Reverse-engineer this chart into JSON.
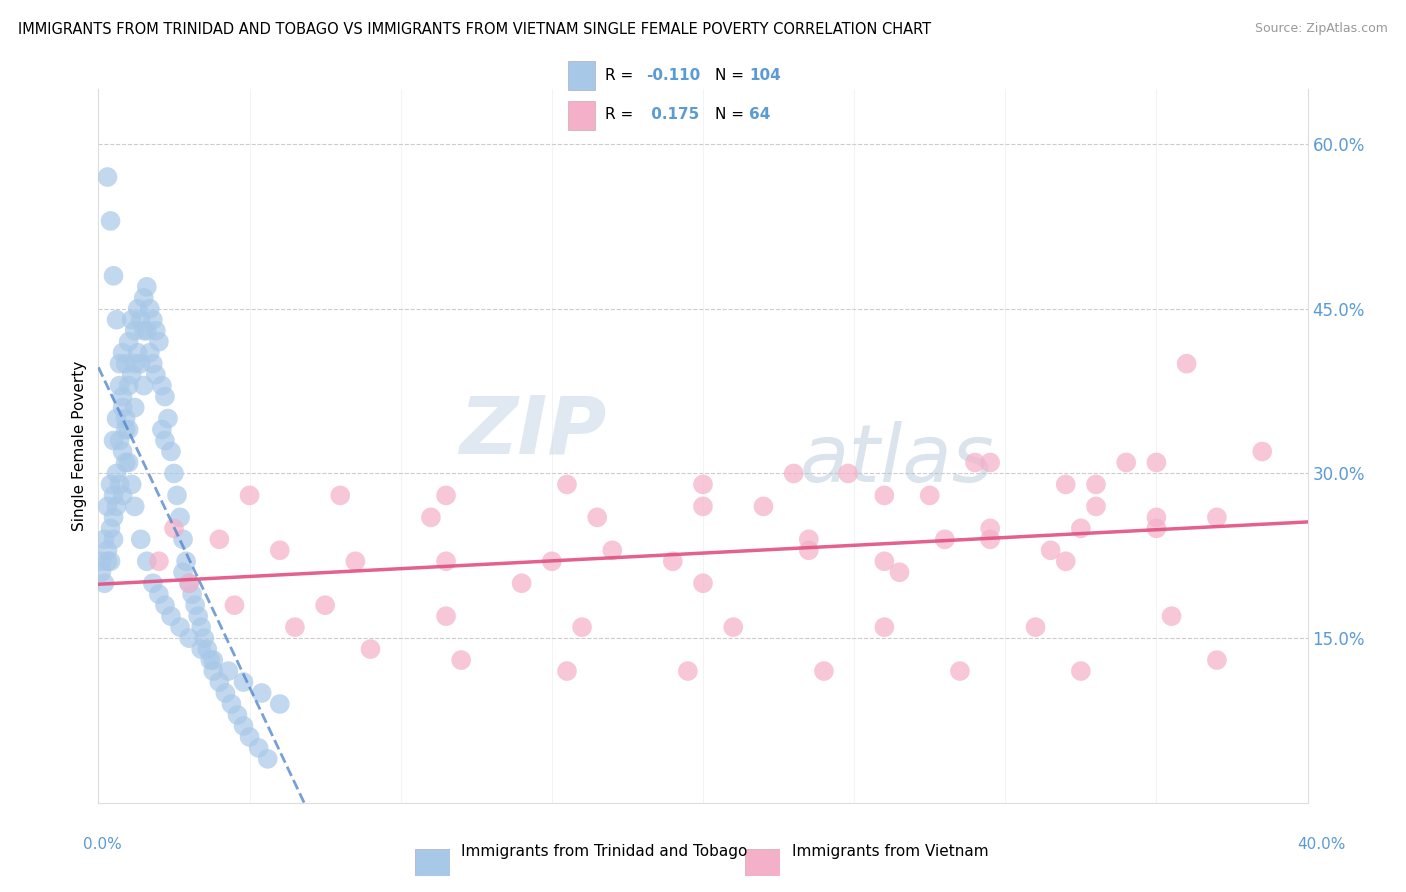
{
  "title": "IMMIGRANTS FROM TRINIDAD AND TOBAGO VS IMMIGRANTS FROM VIETNAM SINGLE FEMALE POVERTY CORRELATION CHART",
  "source": "Source: ZipAtlas.com",
  "ylabel": "Single Female Poverty",
  "legend1_label": "Immigrants from Trinidad and Tobago",
  "legend2_label": "Immigrants from Vietnam",
  "R1": -0.11,
  "N1": 104,
  "R2": 0.175,
  "N2": 64,
  "color1": "#a8c8e8",
  "color2": "#f4b0c8",
  "line1_color": "#5588cc",
  "line2_color": "#e05080",
  "watermark_zip": "ZIP",
  "watermark_atlas": "atlas",
  "xlim": [
    0.0,
    0.4
  ],
  "ylim": [
    0.0,
    0.65
  ],
  "tt_x": [
    0.001,
    0.001,
    0.002,
    0.002,
    0.003,
    0.003,
    0.003,
    0.004,
    0.004,
    0.004,
    0.005,
    0.005,
    0.005,
    0.005,
    0.006,
    0.006,
    0.006,
    0.007,
    0.007,
    0.007,
    0.008,
    0.008,
    0.008,
    0.008,
    0.009,
    0.009,
    0.009,
    0.01,
    0.01,
    0.01,
    0.011,
    0.011,
    0.012,
    0.012,
    0.012,
    0.013,
    0.013,
    0.014,
    0.014,
    0.015,
    0.015,
    0.015,
    0.016,
    0.016,
    0.017,
    0.017,
    0.018,
    0.018,
    0.019,
    0.019,
    0.02,
    0.021,
    0.021,
    0.022,
    0.022,
    0.023,
    0.024,
    0.025,
    0.026,
    0.027,
    0.028,
    0.028,
    0.029,
    0.03,
    0.031,
    0.032,
    0.033,
    0.034,
    0.035,
    0.036,
    0.037,
    0.038,
    0.04,
    0.042,
    0.044,
    0.046,
    0.048,
    0.05,
    0.053,
    0.056,
    0.003,
    0.004,
    0.005,
    0.006,
    0.007,
    0.008,
    0.009,
    0.01,
    0.011,
    0.012,
    0.014,
    0.016,
    0.018,
    0.02,
    0.022,
    0.024,
    0.027,
    0.03,
    0.034,
    0.038,
    0.043,
    0.048,
    0.054,
    0.06
  ],
  "tt_y": [
    0.22,
    0.21,
    0.24,
    0.2,
    0.27,
    0.23,
    0.22,
    0.29,
    0.25,
    0.22,
    0.33,
    0.28,
    0.26,
    0.24,
    0.35,
    0.3,
    0.27,
    0.38,
    0.33,
    0.29,
    0.41,
    0.36,
    0.32,
    0.28,
    0.4,
    0.35,
    0.31,
    0.42,
    0.38,
    0.34,
    0.44,
    0.39,
    0.43,
    0.4,
    0.36,
    0.45,
    0.41,
    0.44,
    0.4,
    0.46,
    0.43,
    0.38,
    0.47,
    0.43,
    0.45,
    0.41,
    0.44,
    0.4,
    0.43,
    0.39,
    0.42,
    0.38,
    0.34,
    0.37,
    0.33,
    0.35,
    0.32,
    0.3,
    0.28,
    0.26,
    0.24,
    0.21,
    0.22,
    0.2,
    0.19,
    0.18,
    0.17,
    0.16,
    0.15,
    0.14,
    0.13,
    0.12,
    0.11,
    0.1,
    0.09,
    0.08,
    0.07,
    0.06,
    0.05,
    0.04,
    0.57,
    0.53,
    0.48,
    0.44,
    0.4,
    0.37,
    0.34,
    0.31,
    0.29,
    0.27,
    0.24,
    0.22,
    0.2,
    0.19,
    0.18,
    0.17,
    0.16,
    0.15,
    0.14,
    0.13,
    0.12,
    0.11,
    0.1,
    0.09
  ],
  "vn_x": [
    0.02,
    0.03,
    0.045,
    0.065,
    0.09,
    0.12,
    0.155,
    0.195,
    0.24,
    0.285,
    0.325,
    0.37,
    0.025,
    0.04,
    0.06,
    0.085,
    0.115,
    0.15,
    0.19,
    0.235,
    0.28,
    0.325,
    0.37,
    0.05,
    0.08,
    0.115,
    0.155,
    0.2,
    0.248,
    0.295,
    0.34,
    0.385,
    0.075,
    0.115,
    0.16,
    0.21,
    0.26,
    0.31,
    0.355,
    0.11,
    0.165,
    0.22,
    0.275,
    0.33,
    0.14,
    0.2,
    0.265,
    0.32,
    0.17,
    0.235,
    0.295,
    0.35,
    0.2,
    0.26,
    0.32,
    0.23,
    0.29,
    0.35,
    0.26,
    0.315,
    0.295,
    0.35,
    0.33,
    0.36
  ],
  "vn_y": [
    0.22,
    0.2,
    0.18,
    0.16,
    0.14,
    0.13,
    0.12,
    0.12,
    0.12,
    0.12,
    0.12,
    0.13,
    0.25,
    0.24,
    0.23,
    0.22,
    0.22,
    0.22,
    0.22,
    0.23,
    0.24,
    0.25,
    0.26,
    0.28,
    0.28,
    0.28,
    0.29,
    0.29,
    0.3,
    0.31,
    0.31,
    0.32,
    0.18,
    0.17,
    0.16,
    0.16,
    0.16,
    0.16,
    0.17,
    0.26,
    0.26,
    0.27,
    0.28,
    0.29,
    0.2,
    0.2,
    0.21,
    0.22,
    0.23,
    0.24,
    0.25,
    0.26,
    0.27,
    0.28,
    0.29,
    0.3,
    0.31,
    0.31,
    0.22,
    0.23,
    0.24,
    0.25,
    0.27,
    0.4
  ]
}
